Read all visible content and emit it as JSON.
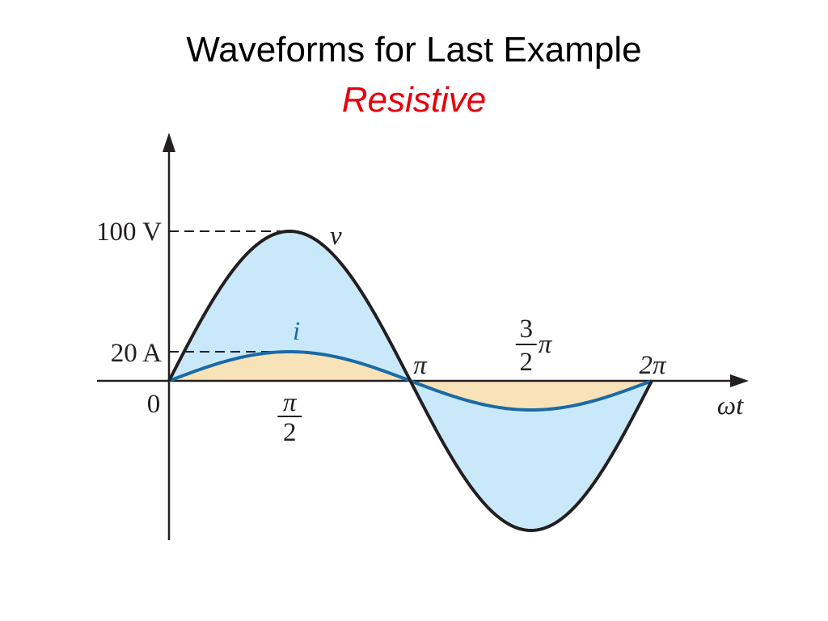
{
  "slide": {
    "title": "Waveforms for Last Example",
    "subtitle": "Resistive",
    "subtitle_color": "#e8000b"
  },
  "chart_data": {
    "type": "line",
    "title": "Waveforms for Last Example",
    "subtitle": "Resistive",
    "xlabel": "ωt",
    "ylabel": "",
    "xlim": [
      0,
      6.2832
    ],
    "grid": false,
    "x_ticks": [
      {
        "value": 1.5708,
        "numerator": "π",
        "denominator": "2",
        "position": "below"
      },
      {
        "value": 3.1416,
        "text": "π",
        "position": "above"
      },
      {
        "value": 4.7124,
        "numerator": "3",
        "denominator": "2",
        "suffix": "π",
        "position": "above"
      },
      {
        "value": 6.2832,
        "text": "2π",
        "position": "above"
      }
    ],
    "origin_label": "0",
    "y_ticks": [
      {
        "text": "100 V",
        "series": "v",
        "value": 100
      },
      {
        "text": "20 A",
        "series": "i",
        "value": 20
      }
    ],
    "series": [
      {
        "name": "v",
        "unit": "V",
        "amplitude": 100,
        "stroke": "#231f20",
        "fill": "#c9e9fa",
        "x": [
          0,
          0.7854,
          1.5708,
          2.3562,
          3.1416,
          3.927,
          4.7124,
          5.4978,
          6.2832
        ],
        "values": [
          0,
          70.7,
          100,
          70.7,
          0,
          -70.7,
          -100,
          -70.7,
          0
        ]
      },
      {
        "name": "i",
        "unit": "A",
        "amplitude": 20,
        "stroke": "#1a6aa6",
        "fill": "#f8e3b9",
        "x": [
          0,
          0.7854,
          1.5708,
          2.3562,
          3.1416,
          3.927,
          4.7124,
          5.4978,
          6.2832
        ],
        "values": [
          0,
          14.14,
          20,
          14.14,
          0,
          -14.14,
          -20,
          -14.14,
          0
        ]
      }
    ]
  }
}
